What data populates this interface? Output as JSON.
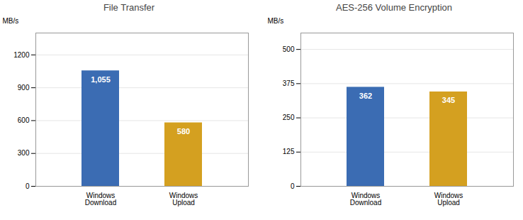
{
  "chart_data": [
    {
      "type": "bar",
      "title": "File Transfer",
      "categories": [
        "Windows\nDownload",
        "Windows\nUpload"
      ],
      "values": [
        1055,
        580
      ],
      "value_labels": [
        "1,055",
        "580"
      ],
      "colors": [
        "#3B6CB3",
        "#D4A020"
      ],
      "ylabel": "MB/s",
      "ylim": [
        0,
        1400
      ],
      "yticks": [
        0,
        300,
        600,
        900,
        1200
      ],
      "grid": true,
      "data_labels": true
    },
    {
      "type": "bar",
      "title": "AES-256 Volume Encryption",
      "categories": [
        "Windows\nDownload",
        "Windows\nUpload"
      ],
      "values": [
        362,
        345
      ],
      "colors": [
        "#3B6CB3",
        "#D4A020"
      ],
      "ylabel": "MB/s",
      "ylim": [
        0,
        560
      ],
      "yticks": [
        0,
        125,
        250,
        375,
        500
      ],
      "grid": true,
      "data_labels": true
    }
  ]
}
